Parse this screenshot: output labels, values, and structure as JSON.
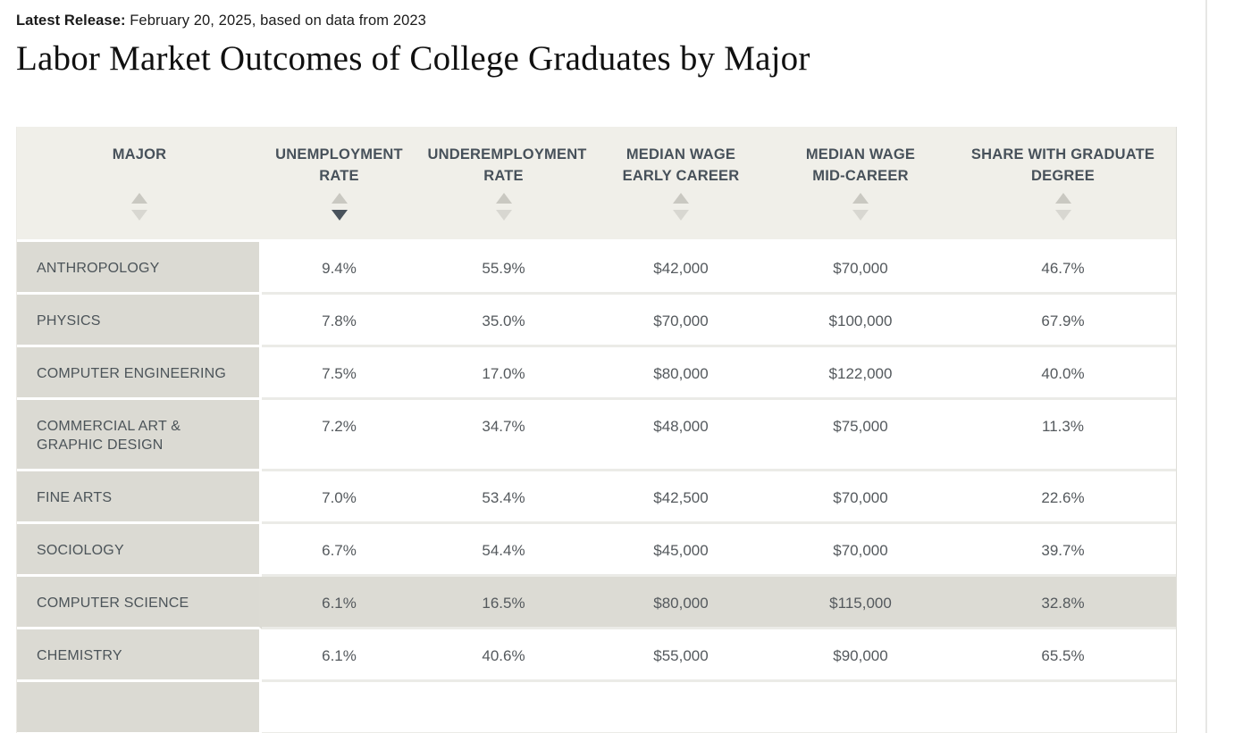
{
  "header": {
    "release_label": "Latest Release:",
    "release_text": "February 20, 2025, based on data from 2023",
    "title": "Labor Market Outcomes of College Graduates by Major"
  },
  "table": {
    "columns": [
      {
        "label": "MAJOR",
        "sort_state": "none"
      },
      {
        "label": "UNEMPLOYMENT RATE",
        "sort_state": "descending"
      },
      {
        "label": "UNDEREMPLOYMENT RATE",
        "sort_state": "none"
      },
      {
        "label": "MEDIAN WAGE EARLY CAREER",
        "sort_state": "none"
      },
      {
        "label": "MEDIAN WAGE MID-CAREER",
        "sort_state": "none"
      },
      {
        "label": "SHARE WITH GRADUATE DEGREE",
        "sort_state": "none"
      }
    ],
    "rows": [
      {
        "major": "ANTHROPOLOGY",
        "unemployment_rate": "9.4%",
        "underemployment_rate": "55.9%",
        "median_wage_early_career": "$42,000",
        "median_wage_mid_career": "$70,000",
        "share_with_graduate_degree": "46.7%",
        "highlighted": false
      },
      {
        "major": "PHYSICS",
        "unemployment_rate": "7.8%",
        "underemployment_rate": "35.0%",
        "median_wage_early_career": "$70,000",
        "median_wage_mid_career": "$100,000",
        "share_with_graduate_degree": "67.9%",
        "highlighted": false
      },
      {
        "major": "COMPUTER ENGINEERING",
        "unemployment_rate": "7.5%",
        "underemployment_rate": "17.0%",
        "median_wage_early_career": "$80,000",
        "median_wage_mid_career": "$122,000",
        "share_with_graduate_degree": "40.0%",
        "highlighted": false
      },
      {
        "major": "COMMERCIAL ART & GRAPHIC DESIGN",
        "unemployment_rate": "7.2%",
        "underemployment_rate": "34.7%",
        "median_wage_early_career": "$48,000",
        "median_wage_mid_career": "$75,000",
        "share_with_graduate_degree": "11.3%",
        "highlighted": false
      },
      {
        "major": "FINE ARTS",
        "unemployment_rate": "7.0%",
        "underemployment_rate": "53.4%",
        "median_wage_early_career": "$42,500",
        "median_wage_mid_career": "$70,000",
        "share_with_graduate_degree": "22.6%",
        "highlighted": false
      },
      {
        "major": "SOCIOLOGY",
        "unemployment_rate": "6.7%",
        "underemployment_rate": "54.4%",
        "median_wage_early_career": "$45,000",
        "median_wage_mid_career": "$70,000",
        "share_with_graduate_degree": "39.7%",
        "highlighted": false
      },
      {
        "major": "COMPUTER SCIENCE",
        "unemployment_rate": "6.1%",
        "underemployment_rate": "16.5%",
        "median_wage_early_career": "$80,000",
        "median_wage_mid_career": "$115,000",
        "share_with_graduate_degree": "32.8%",
        "highlighted": true
      },
      {
        "major": "CHEMISTRY",
        "unemployment_rate": "6.1%",
        "underemployment_rate": "40.6%",
        "median_wage_early_career": "$55,000",
        "median_wage_mid_career": "$90,000",
        "share_with_graduate_degree": "65.5%",
        "highlighted": false
      },
      {
        "major": "",
        "unemployment_rate": "",
        "underemployment_rate": "",
        "median_wage_early_career": "",
        "median_wage_mid_career": "",
        "share_with_graduate_degree": "",
        "highlighted": false
      }
    ]
  },
  "icons": {
    "sort_ascending": "triangle-up",
    "sort_descending": "triangle-down"
  },
  "colors": {
    "header_background": "#f0efe9",
    "major_column_background": "#dbdad3",
    "highlight_row_background": "#dcdbd4",
    "active_sort_arrow": "#49535c",
    "inactive_sort_arrow": "#d8d7d1",
    "header_text": "#47515a",
    "cell_text": "#54595d"
  }
}
